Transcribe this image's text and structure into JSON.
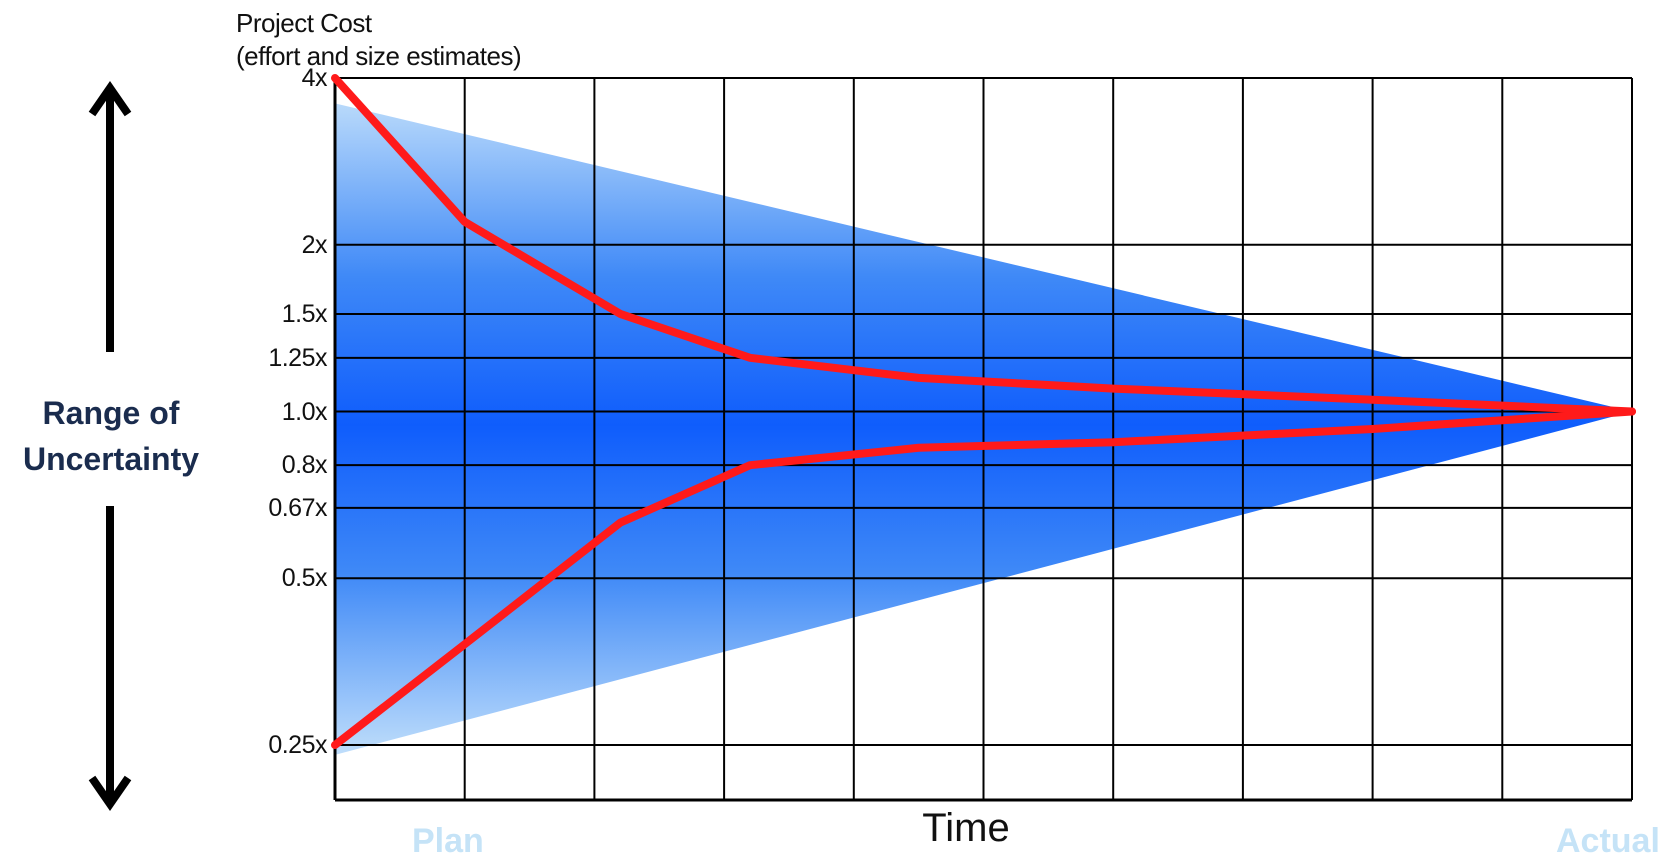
{
  "chart_data": {
    "type": "line",
    "title_line1": "Project Cost",
    "title_line2": "(effort and size estimates)",
    "xlabel": "Time",
    "side_label": [
      "Range of",
      "Uncertainty"
    ],
    "start_label": "Plan",
    "end_label": "Actual",
    "y_scale": "log",
    "y_ticks": [
      {
        "value": 4,
        "label": "4x"
      },
      {
        "value": 2,
        "label": "2x"
      },
      {
        "value": 1.5,
        "label": "1.5x"
      },
      {
        "value": 1.25,
        "label": "1.25x"
      },
      {
        "value": 1.0,
        "label": "1.0x"
      },
      {
        "value": 0.8,
        "label": "0.8x"
      },
      {
        "value": 0.67,
        "label": "0.67x"
      },
      {
        "value": 0.5,
        "label": "0.5x"
      },
      {
        "value": 0.25,
        "label": "0.25x"
      }
    ],
    "ylim": [
      0.2,
      4
    ],
    "x_divisions": 10,
    "grid": true,
    "band": {
      "x": [
        0,
        10
      ],
      "upper": [
        3.6,
        1.0
      ],
      "lower": [
        0.24,
        1.0
      ]
    },
    "series": [
      {
        "x": [
          0,
          1,
          2.2,
          3.2,
          4.5,
          6,
          8,
          10
        ],
        "values": [
          4,
          2.2,
          1.5,
          1.25,
          1.15,
          1.1,
          1.05,
          1.0
        ],
        "color": "#ff1a1a"
      },
      {
        "x": [
          0,
          1,
          2.2,
          3.2,
          4.5,
          6,
          8,
          10
        ],
        "values": [
          0.25,
          0.38,
          0.63,
          0.8,
          0.86,
          0.88,
          0.93,
          1.0
        ],
        "color": "#ff1a1a"
      }
    ],
    "colors": {
      "band_light": "#c4e1fb",
      "band_mid": "#5a9df5",
      "band_dark": "#0f5dfc",
      "grid": "#000000",
      "curve": "#ff1a1a",
      "side_label": "#1a2c4e",
      "end_labels": "#c5e3f7"
    }
  }
}
